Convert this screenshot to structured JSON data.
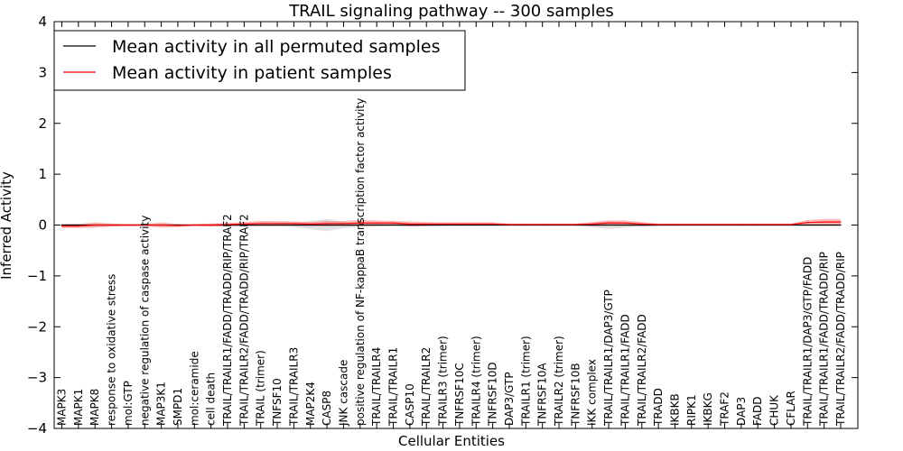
{
  "chart_data": {
    "type": "line",
    "title": "TRAIL signaling pathway -- 300 samples",
    "xlabel": "Cellular Entities",
    "ylabel": "Inferred Activity",
    "ylim": [
      -4,
      4
    ],
    "yticks": [
      -4,
      -3,
      -2,
      -1,
      0,
      1,
      2,
      3,
      4
    ],
    "ytick_labels": [
      "−4",
      "−3",
      "−2",
      "−1",
      "0",
      "1",
      "2",
      "3",
      "4"
    ],
    "legend_position": "upper-left",
    "categories": [
      "MAPK3",
      "MAPK1",
      "MAPK8",
      "response to oxidative stress",
      "mol:GTP",
      "negative regulation of caspase activity",
      "MAP3K1",
      "SMPD1",
      "mol:ceramide",
      "cell death",
      "TRAIL/TRAILR1/FADD/TRADD/RIP/TRAF2",
      "TRAIL/TRAILR2/FADD/TRADD/RIP/TRAF2",
      "TRAIL (trimer)",
      "TNFSF10",
      "TRAIL/TRAILR3",
      "MAP2K4",
      "CASP8",
      "JNK cascade",
      "positive regulation of NF-kappaB transcription factor activity",
      "TRAIL/TRAILR4",
      "TRAIL/TRAILR1",
      "CASP10",
      "TRAIL/TRAILR2",
      "TRAILR3 (trimer)",
      "TNFRSF10C",
      "TRAILR4 (trimer)",
      "TNFRSF10D",
      "DAP3/GTP",
      "TRAILR1 (trimer)",
      "TNFRSF10A",
      "TRAILR2 (trimer)",
      "TNFRSF10B",
      "IKK complex",
      "TRAIL/TRAILR1/DAP3/GTP",
      "TRAIL/TRAILR1/FADD",
      "TRAIL/TRAILR2/FADD",
      "TRADD",
      "IKBKB",
      "RIPK1",
      "IKBKG",
      "TRAF2",
      "DAP3",
      "FADD",
      "CHUK",
      "CFLAR",
      "TRAIL/TRAILR1/DAP3/GTP/FADD",
      "TRAIL/TRAILR1/FADD/TRADD/RIP",
      "TRAIL/TRAILR2/FADD/TRADD/RIP"
    ],
    "series": [
      {
        "name": "Mean activity in all permuted samples",
        "color": "#000000",
        "values": [
          0,
          0,
          0,
          0,
          0,
          0,
          0,
          0,
          0,
          0,
          0,
          0,
          0,
          0,
          0,
          0,
          0,
          0,
          0,
          0,
          0,
          0,
          0,
          0,
          0,
          0,
          0,
          0,
          0,
          0,
          0,
          0,
          0,
          0,
          0,
          0,
          0,
          0,
          0,
          0,
          0,
          0,
          0,
          0,
          0,
          0,
          0,
          0
        ],
        "band_halfwidth": [
          0.02,
          0.02,
          0.03,
          0.02,
          0.01,
          0.01,
          0.02,
          0.02,
          0.01,
          0.02,
          0.03,
          0.03,
          0.02,
          0.02,
          0.04,
          0.08,
          0.12,
          0.06,
          0.04,
          0.03,
          0.02,
          0.02,
          0.02,
          0.01,
          0.01,
          0.01,
          0.01,
          0.01,
          0.01,
          0.01,
          0.01,
          0.01,
          0.04,
          0.08,
          0.05,
          0.03,
          0.02,
          0.01,
          0.01,
          0.01,
          0.01,
          0.01,
          0.01,
          0.01,
          0.01,
          0.02,
          0.02,
          0.02
        ]
      },
      {
        "name": "Mean activity in patient samples",
        "color": "#ff0000",
        "values": [
          -0.02,
          -0.02,
          0.0,
          0.0,
          0.0,
          0.0,
          0.0,
          -0.01,
          0.0,
          0.0,
          0.01,
          0.02,
          0.03,
          0.03,
          0.03,
          0.02,
          0.03,
          0.03,
          0.04,
          0.04,
          0.04,
          0.02,
          0.02,
          0.02,
          0.02,
          0.02,
          0.02,
          0.01,
          0.01,
          0.01,
          0.01,
          0.01,
          0.02,
          0.04,
          0.04,
          0.02,
          0.01,
          0.01,
          0.01,
          0.01,
          0.01,
          0.01,
          0.01,
          0.01,
          0.01,
          0.05,
          0.06,
          0.06
        ],
        "band_halfwidth": [
          0.04,
          0.04,
          0.05,
          0.03,
          0.02,
          0.02,
          0.05,
          0.03,
          0.02,
          0.03,
          0.03,
          0.04,
          0.05,
          0.05,
          0.04,
          0.04,
          0.05,
          0.05,
          0.06,
          0.05,
          0.04,
          0.05,
          0.04,
          0.03,
          0.03,
          0.03,
          0.03,
          0.02,
          0.02,
          0.02,
          0.02,
          0.02,
          0.04,
          0.05,
          0.05,
          0.04,
          0.02,
          0.02,
          0.02,
          0.02,
          0.02,
          0.02,
          0.02,
          0.02,
          0.02,
          0.05,
          0.06,
          0.06
        ]
      }
    ],
    "band_colors": [
      "#c8c8c8",
      "#ff8080"
    ]
  }
}
